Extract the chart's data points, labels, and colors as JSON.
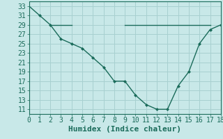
{
  "title": "",
  "xlabel": "Humidex (Indice chaleur)",
  "bg_color": "#c8e8e8",
  "line_color": "#1a6b5a",
  "xlim": [
    0,
    18
  ],
  "ylim": [
    10,
    34
  ],
  "xticks": [
    0,
    1,
    2,
    3,
    4,
    5,
    6,
    7,
    8,
    9,
    10,
    11,
    12,
    13,
    14,
    15,
    16,
    17,
    18
  ],
  "yticks": [
    11,
    13,
    15,
    17,
    19,
    21,
    23,
    25,
    27,
    29,
    31,
    33
  ],
  "curve1_x": [
    0,
    1,
    2,
    3,
    4,
    5,
    6,
    7,
    8,
    9,
    10,
    11,
    12,
    13,
    14,
    15,
    16,
    17,
    18
  ],
  "curve1_y": [
    33,
    31,
    29,
    26,
    25,
    24,
    22,
    20,
    17,
    17,
    14,
    12,
    11,
    11,
    16,
    19,
    25,
    28,
    29
  ],
  "flat_line1_x": [
    2,
    4
  ],
  "flat_line1_y": [
    29,
    29
  ],
  "flat_line2_x": [
    9,
    17
  ],
  "flat_line2_y": [
    29,
    29
  ],
  "marker_x": [
    1,
    2,
    3,
    4,
    5,
    6,
    7,
    8,
    9,
    10,
    11,
    12,
    13,
    14,
    15,
    16,
    17,
    18
  ],
  "marker_y": [
    31,
    29,
    26,
    25,
    24,
    22,
    20,
    17,
    17,
    14,
    12,
    11,
    11,
    16,
    19,
    25,
    28,
    29
  ],
  "grid_color": "#a8d0d0",
  "xlabel_fontsize": 8,
  "tick_fontsize": 7
}
